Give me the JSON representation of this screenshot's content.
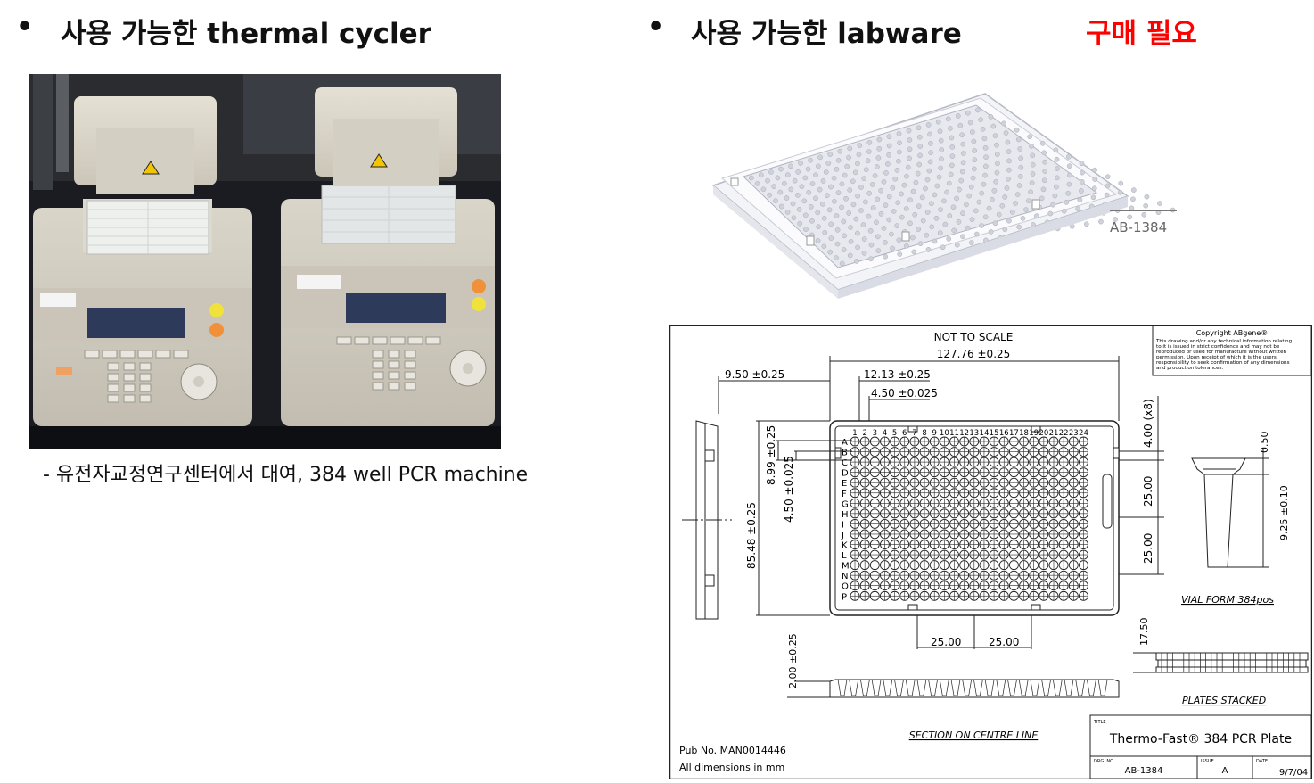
{
  "left": {
    "bullet": "•",
    "heading": "사용 가능한 thermal cycler",
    "caption": "- 유전자교정연구센터에서 대여, 384 well PCR machine",
    "photo_alt": "two thermal cyclers"
  },
  "right": {
    "bullet": "•",
    "heading": "사용 가능한 labware",
    "purchase_note": "구매 필요",
    "plate_label": "AB-1384"
  },
  "drawing": {
    "not_to_scale": "NOT TO SCALE",
    "width_dim": "127.76  ±0.25",
    "dim_950": "9.50 ±0.25",
    "dim_1213": "12.13 ±0.25",
    "dim_450_025": "4.50 ±0.025",
    "dim_8548": "85.48 ±0.25",
    "dim_899": "8.99 ±0.25",
    "dim_450_v": "4.50 ±0.025",
    "dim_400": "4.00 (x8)",
    "dim_2500_v1": "25.00",
    "dim_2500_v2": "25.00",
    "dim_2500_h1": "25.00",
    "dim_2500_h2": "25.00",
    "dim_050": "0.50",
    "dim_925": "9.25 ±0.10",
    "dim_1750": "17.50",
    "dim_200": "2.00 ±0.25",
    "column_labels": [
      "1",
      "2",
      "3",
      "4",
      "5",
      "6",
      "7",
      "8",
      "9",
      "10",
      "11",
      "12",
      "13",
      "14",
      "15",
      "16",
      "17",
      "18",
      "19",
      "20",
      "21",
      "22",
      "23",
      "24"
    ],
    "row_labels": [
      "A",
      "B",
      "C",
      "D",
      "E",
      "F",
      "G",
      "H",
      "I",
      "J",
      "K",
      "L",
      "M",
      "N",
      "O",
      "P"
    ],
    "vial_form": "VIAL FORM 384pos",
    "plates_stacked": "PLATES STACKED",
    "section_label": "SECTION ON CENTRE LINE",
    "copyright_title": "Copyright ABgene®",
    "copyright_lines": [
      "This drawing and/or any technical information relating",
      "to it is issued in strict confidence and may not be",
      "reproduced or used for manufacture without written",
      "permission. Upon receipt of which it is the users",
      "responsibility to seek confirmation of any dimensions",
      "and production tolerances."
    ],
    "title_label": "TITLE",
    "title": "Thermo-Fast® 384 PCR Plate",
    "drg_no_label": "DRG. NO.",
    "drg_no": "AB-1384",
    "issue_label": "ISSUE",
    "issue": "A",
    "date_label": "DATE",
    "date": "9/7/04",
    "pub_no": "Pub No. MAN0014446",
    "all_dimensions": "All dimensions in mm"
  }
}
